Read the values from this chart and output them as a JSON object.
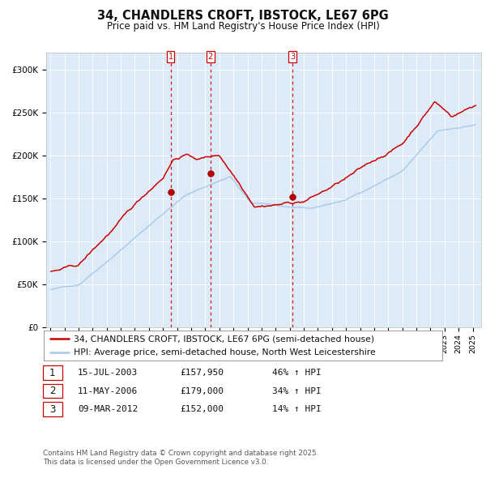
{
  "title": "34, CHANDLERS CROFT, IBSTOCK, LE67 6PG",
  "subtitle": "Price paid vs. HM Land Registry's House Price Index (HPI)",
  "legend_line1": "34, CHANDLERS CROFT, IBSTOCK, LE67 6PG (semi-detached house)",
  "legend_line2": "HPI: Average price, semi-detached house, North West Leicestershire",
  "transactions": [
    {
      "num": 1,
      "date": "15-JUL-2003",
      "price": 157950,
      "pct": "46%",
      "dir": "↑"
    },
    {
      "num": 2,
      "date": "11-MAY-2006",
      "price": 179000,
      "pct": "34%",
      "dir": "↑"
    },
    {
      "num": 3,
      "date": "09-MAR-2012",
      "price": 152000,
      "pct": "14%",
      "dir": "↑"
    }
  ],
  "transaction_dates_decimal": [
    2003.538,
    2006.36,
    2012.188
  ],
  "transaction_prices": [
    157950,
    179000,
    152000
  ],
  "hpi_color": "#a8c8e8",
  "price_color": "#cc0000",
  "vline_color": "#cc0000",
  "plot_bg_color": "#ddeaf7",
  "ylim": [
    0,
    320000
  ],
  "yticks": [
    0,
    50000,
    100000,
    150000,
    200000,
    250000,
    300000
  ],
  "ytick_labels": [
    "£0",
    "£50K",
    "£100K",
    "£150K",
    "£200K",
    "£250K",
    "£300K"
  ],
  "footer": "Contains HM Land Registry data © Crown copyright and database right 2025.\nThis data is licensed under the Open Government Licence v3.0.",
  "title_fontsize": 10.5,
  "subtitle_fontsize": 8.5,
  "tick_fontsize": 7.5,
  "legend_fontsize": 8
}
